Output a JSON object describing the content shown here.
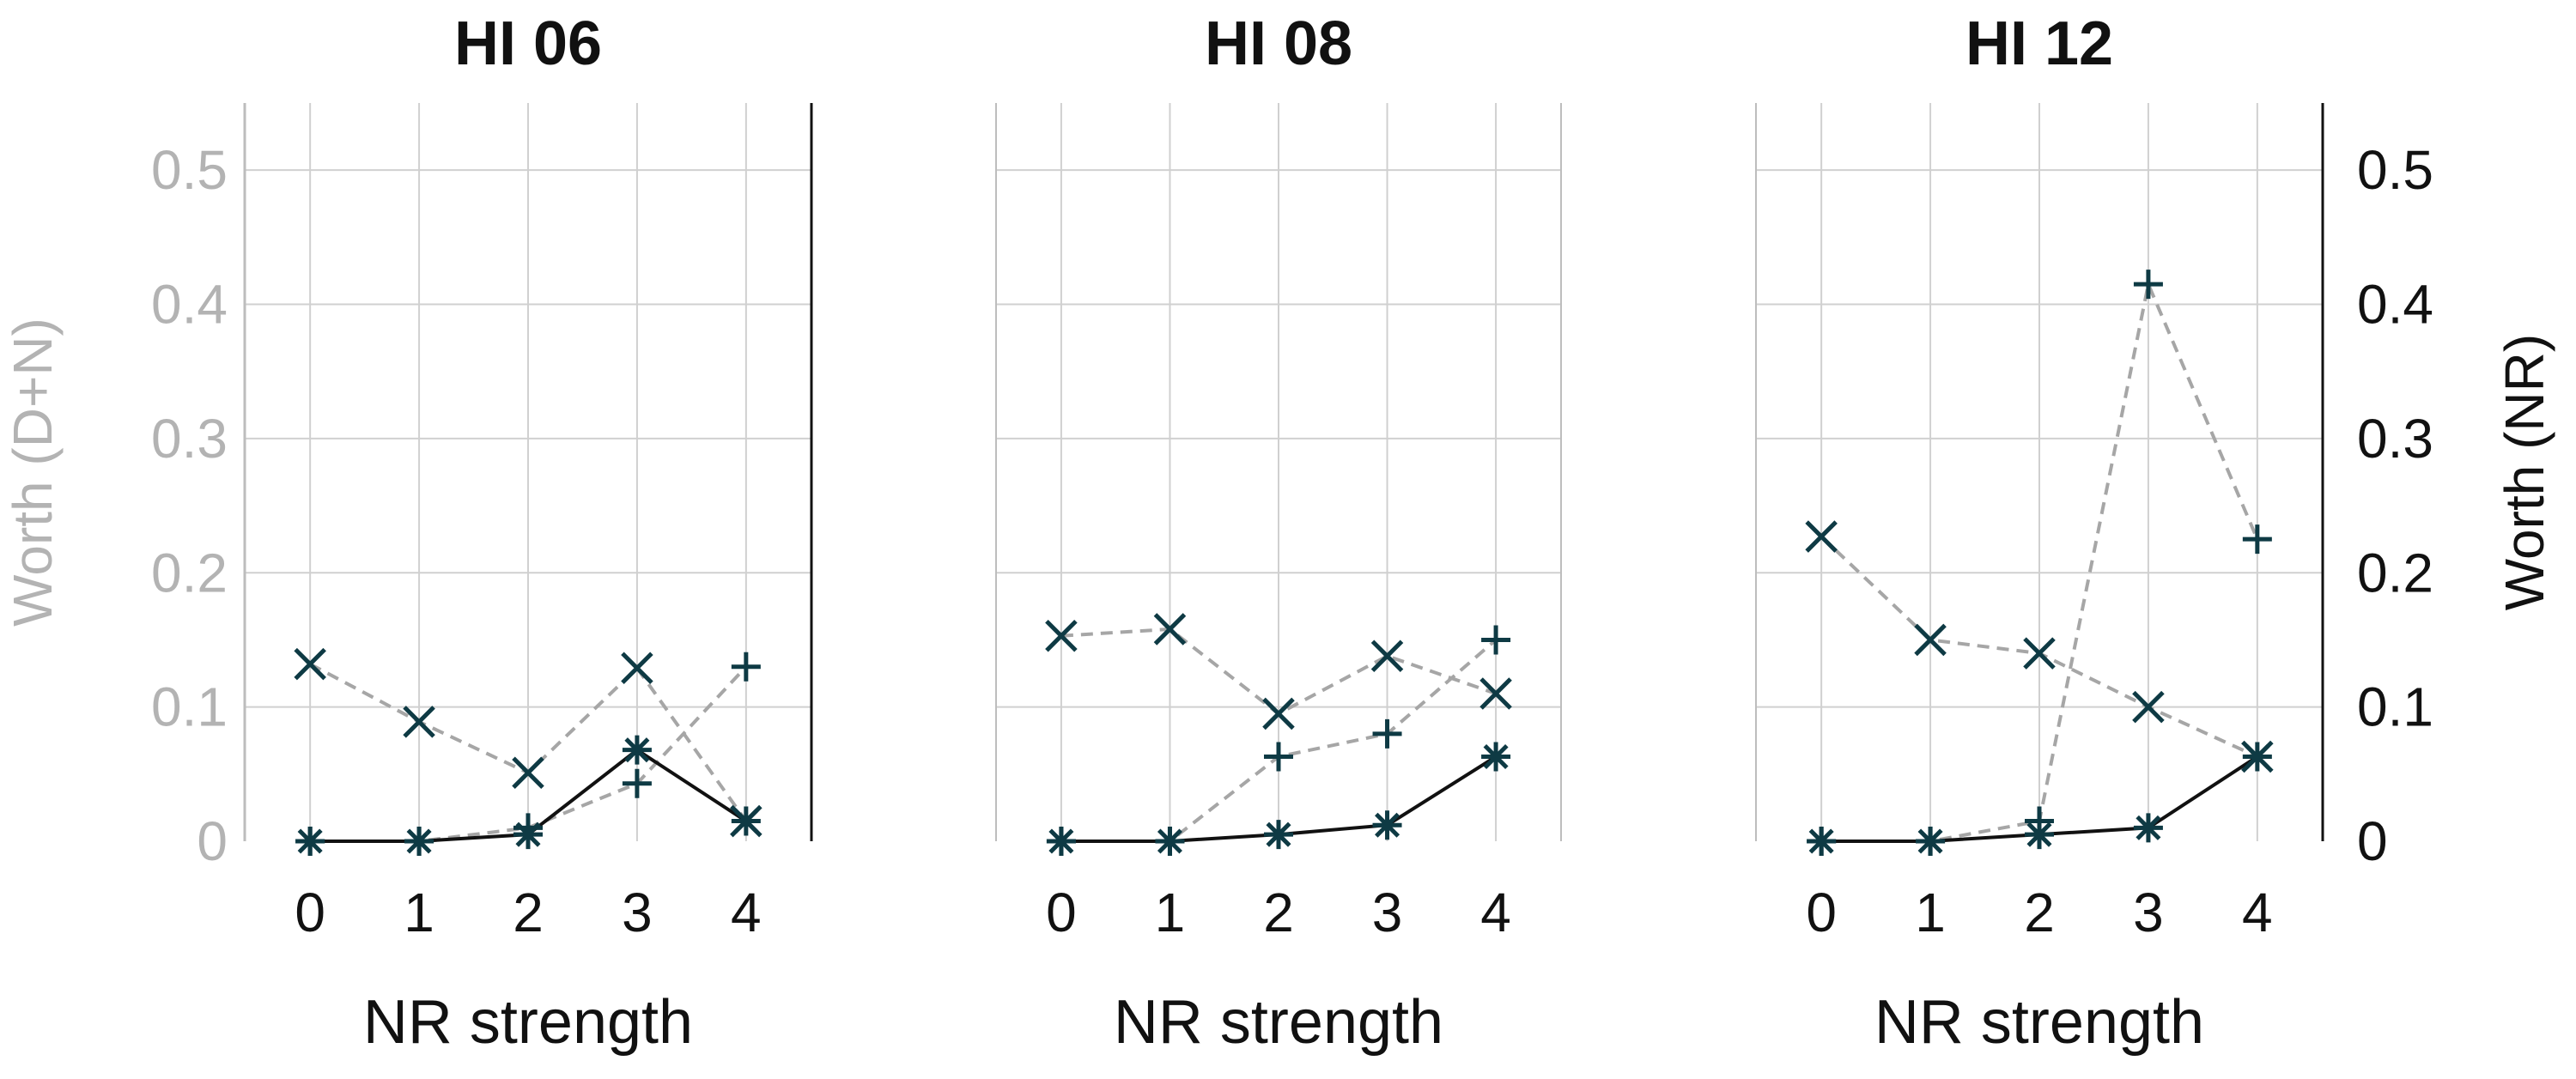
{
  "chart_data": [
    {
      "type": "line",
      "title": "HI 06",
      "xlabel": "NR strength",
      "ylabel": "Worth (D+N)",
      "x": [
        0,
        1,
        2,
        3,
        4
      ],
      "ylim": [
        0,
        0.55
      ],
      "yticks": [
        "0",
        "0.1",
        "0.2",
        "0.3",
        "0.4",
        "0.5"
      ],
      "series": [
        {
          "name": "x-marker dashed",
          "style": "dashed-gray",
          "marker": "x",
          "values": [
            0.132,
            0.089,
            0.051,
            0.129,
            0.015
          ]
        },
        {
          "name": "plus-marker dashed",
          "style": "dashed-gray",
          "marker": "+",
          "values": [
            0.0,
            0.0,
            0.01,
            0.043,
            0.13
          ]
        },
        {
          "name": "asterisk solid",
          "style": "solid-black",
          "marker": "*",
          "values": [
            0.0,
            0.0,
            0.005,
            0.068,
            0.015
          ]
        }
      ]
    },
    {
      "type": "line",
      "title": "HI 08",
      "xlabel": "NR strength",
      "x": [
        0,
        1,
        2,
        3,
        4
      ],
      "ylim": [
        0,
        0.55
      ],
      "series": [
        {
          "name": "x-marker dashed",
          "style": "dashed-gray",
          "marker": "x",
          "values": [
            0.153,
            0.158,
            0.095,
            0.138,
            0.11
          ]
        },
        {
          "name": "plus-marker dashed",
          "style": "dashed-gray",
          "marker": "+",
          "values": [
            0.0,
            0.0,
            0.063,
            0.08,
            0.15
          ]
        },
        {
          "name": "asterisk solid",
          "style": "solid-black",
          "marker": "*",
          "values": [
            0.0,
            0.0,
            0.005,
            0.012,
            0.063
          ]
        }
      ]
    },
    {
      "type": "line",
      "title": "HI 12",
      "xlabel": "NR strength",
      "ylabel": "Worth (NR)",
      "x": [
        0,
        1,
        2,
        3,
        4
      ],
      "ylim": [
        0,
        0.55
      ],
      "yticks": [
        "0",
        "0.1",
        "0.2",
        "0.3",
        "0.4",
        "0.5"
      ],
      "series": [
        {
          "name": "x-marker dashed",
          "style": "dashed-gray",
          "marker": "x",
          "values": [
            0.227,
            0.15,
            0.14,
            0.1,
            0.063
          ]
        },
        {
          "name": "plus-marker dashed",
          "style": "dashed-gray",
          "marker": "+",
          "values": [
            0.0,
            0.0,
            0.015,
            0.415,
            0.225
          ]
        },
        {
          "name": "asterisk solid",
          "style": "solid-black",
          "marker": "*",
          "values": [
            0.0,
            0.0,
            0.005,
            0.01,
            0.063
          ]
        }
      ]
    }
  ]
}
